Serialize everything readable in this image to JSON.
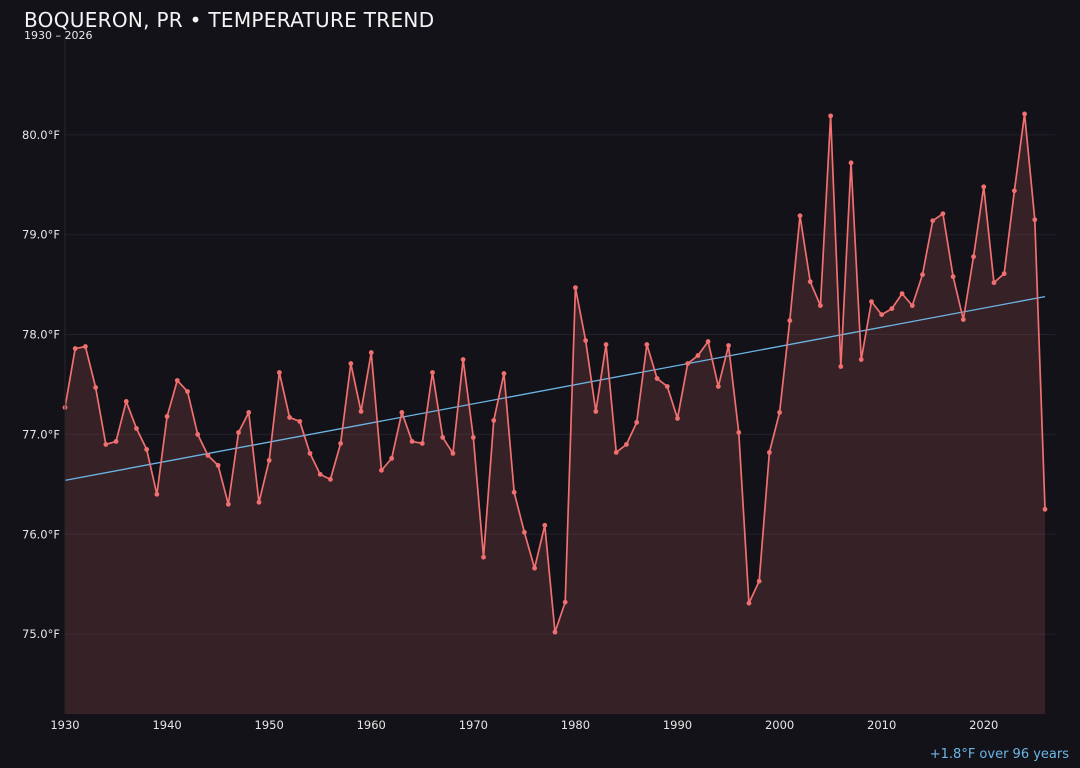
{
  "chart_data": {
    "type": "line",
    "title": "BOQUERON, PR • TEMPERATURE TREND",
    "subtitle": "1930 – 2026",
    "xlabel": "",
    "ylabel": "",
    "xlim": [
      1930,
      2026
    ],
    "ylim": [
      74.2,
      80.99
    ],
    "grid": true,
    "x_ticks": [
      1930,
      1940,
      1950,
      1960,
      1970,
      1980,
      1990,
      2000,
      2010,
      2020
    ],
    "y_ticks": [
      75.0,
      76.0,
      77.0,
      78.0,
      79.0,
      80.0
    ],
    "y_tick_labels": [
      "75.0°F",
      "76.0°F",
      "77.0°F",
      "78.0°F",
      "79.0°F",
      "80.0°F"
    ],
    "series": [
      {
        "name": "",
        "style": "line-markers-area",
        "color": "#f07070",
        "x": [
          1930,
          1931,
          1932,
          1933,
          1934,
          1935,
          1936,
          1937,
          1938,
          1939,
          1940,
          1941,
          1942,
          1943,
          1944,
          1945,
          1946,
          1947,
          1948,
          1949,
          1950,
          1951,
          1952,
          1953,
          1954,
          1955,
          1956,
          1957,
          1958,
          1959,
          1960,
          1961,
          1962,
          1963,
          1964,
          1965,
          1966,
          1967,
          1968,
          1969,
          1970,
          1971,
          1972,
          1973,
          1974,
          1975,
          1976,
          1977,
          1978,
          1979,
          1980,
          1981,
          1982,
          1983,
          1984,
          1985,
          1986,
          1987,
          1988,
          1989,
          1990,
          1991,
          1992,
          1993,
          1994,
          1995,
          1996,
          1997,
          1998,
          1999,
          2000,
          2001,
          2002,
          2003,
          2004,
          2005,
          2006,
          2007,
          2008,
          2009,
          2010,
          2011,
          2012,
          2013,
          2014,
          2015,
          2016,
          2017,
          2018,
          2019,
          2020,
          2021,
          2022,
          2023,
          2024,
          2025,
          2026
        ],
        "values": [
          77.27,
          77.86,
          77.88,
          77.47,
          76.9,
          76.93,
          77.33,
          77.06,
          76.85,
          76.4,
          77.18,
          77.54,
          77.43,
          77.0,
          76.79,
          76.69,
          76.3,
          77.02,
          77.22,
          76.32,
          76.74,
          77.62,
          77.17,
          77.13,
          76.81,
          76.6,
          76.55,
          76.91,
          77.71,
          77.23,
          77.82,
          76.64,
          76.76,
          77.22,
          76.93,
          76.91,
          77.62,
          76.97,
          76.81,
          77.75,
          76.97,
          75.77,
          77.14,
          77.61,
          76.42,
          76.02,
          75.66,
          76.09,
          75.02,
          75.32,
          78.47,
          77.94,
          77.23,
          77.9,
          76.82,
          76.9,
          77.12,
          77.9,
          77.56,
          77.48,
          77.16,
          77.71,
          77.79,
          77.93,
          77.48,
          77.89,
          77.02,
          75.31,
          75.53,
          76.82,
          77.22,
          78.14,
          79.19,
          78.53,
          78.29,
          80.19,
          77.68,
          79.72,
          77.75,
          78.33,
          78.2,
          78.26,
          78.41,
          78.29,
          78.6,
          79.14,
          79.21,
          78.58,
          78.15,
          78.78,
          79.48,
          78.52,
          78.61,
          79.44,
          80.21,
          79.15,
          76.25
        ]
      },
      {
        "name": "",
        "style": "trend-line",
        "color": "#6cb6e6",
        "x": [
          1930,
          2026
        ],
        "values": [
          76.54,
          78.38
        ]
      }
    ],
    "annotations": [
      "+1.8°F over 96 years"
    ]
  }
}
